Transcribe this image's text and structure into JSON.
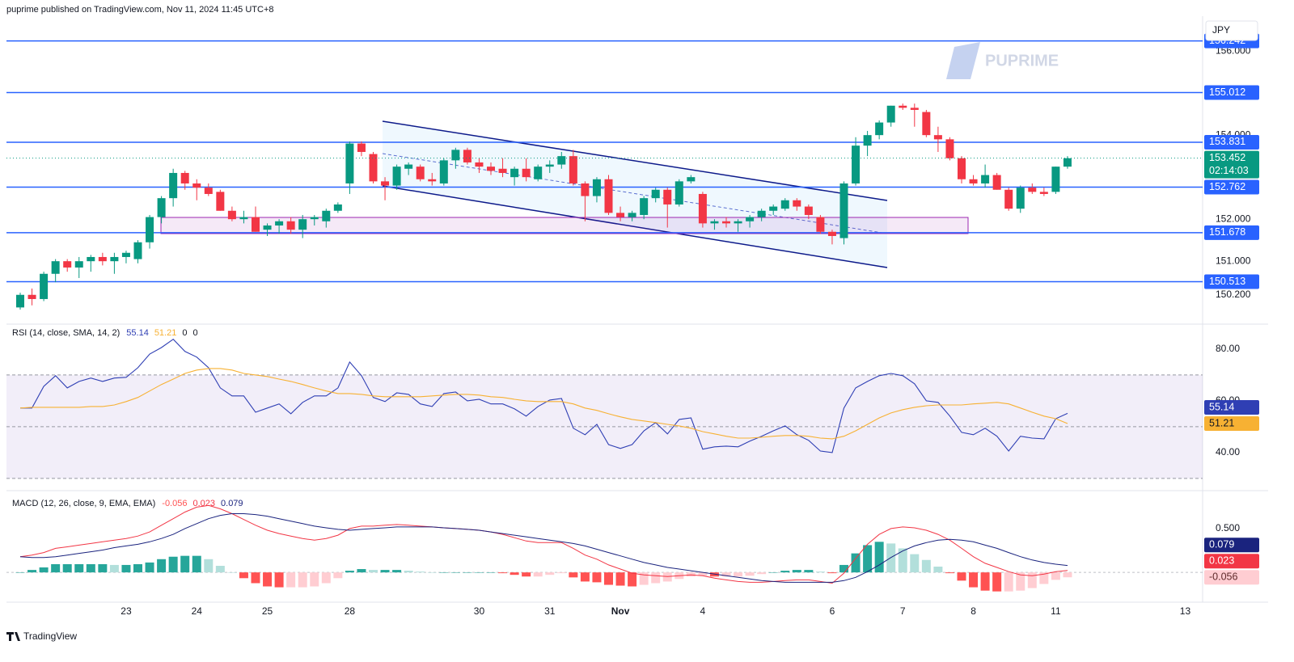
{
  "header": {
    "published": "puprime published on TradingView.com, Nov 11, 2024 11:45 UTC+8",
    "currency": "JPY",
    "watermark": "PUPRIME",
    "footer": "TradingView"
  },
  "chart_data": [
    {
      "type": "candlestick",
      "categories": [
        null,
        null,
        null,
        null,
        null,
        null,
        null,
        null,
        null,
        "23",
        null,
        null,
        null,
        null,
        null,
        "24",
        null,
        null,
        null,
        null,
        null,
        "25",
        null,
        null,
        null,
        null,
        null,
        null,
        "28",
        null,
        null,
        null,
        null,
        null,
        null,
        null,
        null,
        null,
        null,
        "30",
        null,
        null,
        null,
        null,
        null,
        "31",
        null,
        null,
        null,
        null,
        null,
        "Nov",
        null,
        null,
        null,
        null,
        null,
        null,
        "4",
        null,
        null,
        null,
        null,
        null,
        null,
        null,
        null,
        null,
        null,
        "6",
        null,
        null,
        null,
        null,
        null,
        "7",
        null,
        null,
        null,
        null,
        null,
        "8",
        null,
        null,
        null,
        null,
        null,
        null,
        "11",
        null,
        null,
        null,
        null,
        null,
        null,
        null,
        null,
        null,
        null,
        "13",
        null
      ],
      "open": [
        149.9,
        150.2,
        150.1,
        150.7,
        151.0,
        150.85,
        151.0,
        151.1,
        151.0,
        151.1,
        151.05,
        151.45,
        152.05,
        152.5,
        153.1,
        152.85,
        152.75,
        152.65,
        152.2,
        152.0,
        152.05,
        151.75,
        151.85,
        151.95,
        151.75,
        152.0,
        151.95,
        152.2,
        152.85,
        153.8,
        153.55,
        152.9,
        152.8,
        153.2,
        153.25,
        152.95,
        152.85,
        153.4,
        153.65,
        153.35,
        153.25,
        153.2,
        153.0,
        153.2,
        152.95,
        153.25,
        153.3,
        153.5,
        152.85,
        152.55,
        152.95,
        152.15,
        152.05,
        152.1,
        152.5,
        152.7,
        152.35,
        152.9,
        152.6,
        151.9,
        151.95,
        151.9,
        151.95,
        152.05,
        152.2,
        152.25,
        152.45,
        152.3,
        152.05,
        151.7,
        151.55,
        152.85,
        153.75,
        154.0,
        154.3,
        154.7,
        154.65,
        154.55,
        154.0,
        153.9,
        153.45,
        152.95,
        152.85,
        153.05,
        152.7,
        152.25,
        152.75,
        152.65,
        152.65,
        153.25,
        null,
        null,
        null,
        null,
        null,
        null,
        null,
        null,
        null,
        null,
        null
      ],
      "high": [
        150.25,
        150.35,
        150.75,
        151.05,
        151.05,
        151.1,
        151.15,
        151.2,
        151.2,
        151.25,
        151.5,
        152.1,
        152.55,
        153.2,
        153.15,
        152.95,
        152.85,
        152.7,
        152.3,
        152.2,
        152.3,
        151.9,
        152.0,
        152.05,
        152.1,
        152.1,
        152.25,
        152.4,
        153.85,
        153.85,
        153.6,
        153.0,
        153.3,
        153.35,
        153.3,
        153.1,
        153.45,
        153.7,
        153.7,
        153.45,
        153.35,
        153.45,
        153.25,
        153.45,
        153.3,
        153.4,
        153.6,
        153.65,
        152.9,
        153.0,
        153.05,
        152.3,
        152.2,
        152.55,
        152.75,
        152.75,
        152.95,
        153.05,
        152.65,
        152.0,
        152.05,
        152.0,
        152.1,
        152.25,
        152.35,
        152.5,
        152.5,
        152.35,
        152.1,
        151.75,
        152.9,
        153.95,
        154.1,
        154.35,
        154.7,
        154.75,
        154.75,
        154.6,
        154.2,
        153.95,
        153.5,
        153.05,
        153.3,
        153.1,
        152.75,
        152.8,
        152.85,
        152.75,
        153.25,
        153.5,
        null,
        null,
        null,
        null,
        null,
        null,
        null,
        null,
        null,
        null,
        null
      ],
      "low": [
        149.85,
        149.95,
        150.05,
        150.5,
        150.75,
        150.6,
        150.75,
        150.9,
        150.7,
        150.95,
        150.95,
        151.3,
        151.9,
        152.3,
        152.7,
        152.45,
        152.55,
        152.2,
        151.95,
        151.9,
        151.7,
        151.6,
        151.65,
        151.65,
        151.55,
        151.85,
        151.8,
        152.15,
        152.6,
        153.5,
        152.85,
        152.45,
        152.7,
        153.05,
        152.9,
        152.8,
        152.8,
        153.2,
        153.3,
        153.1,
        153.05,
        153.0,
        152.8,
        152.9,
        152.9,
        153.1,
        153.2,
        152.8,
        151.95,
        152.4,
        152.1,
        151.95,
        151.95,
        152.0,
        152.4,
        151.8,
        152.3,
        152.85,
        151.8,
        151.75,
        151.8,
        151.7,
        151.8,
        151.95,
        152.1,
        152.2,
        152.2,
        152.0,
        151.65,
        151.4,
        151.4,
        152.8,
        153.5,
        153.9,
        154.2,
        154.6,
        154.2,
        153.95,
        153.6,
        153.4,
        152.85,
        152.8,
        152.75,
        152.7,
        152.2,
        152.15,
        152.6,
        152.55,
        152.6,
        153.2,
        null,
        null,
        null,
        null,
        null,
        null,
        null,
        null,
        null,
        null,
        null
      ],
      "close": [
        150.2,
        150.1,
        150.7,
        151.0,
        150.85,
        151.0,
        151.1,
        151.0,
        151.1,
        151.2,
        151.45,
        152.05,
        152.5,
        153.1,
        152.85,
        152.75,
        152.6,
        152.2,
        152.0,
        152.05,
        151.7,
        151.85,
        151.95,
        151.75,
        152.0,
        152.05,
        152.2,
        152.35,
        153.8,
        153.6,
        152.9,
        152.8,
        153.25,
        153.3,
        152.95,
        152.9,
        153.4,
        153.65,
        153.35,
        153.25,
        153.15,
        153.1,
        153.2,
        153.0,
        153.25,
        153.3,
        153.5,
        152.85,
        152.55,
        152.95,
        152.15,
        152.05,
        152.15,
        152.5,
        152.7,
        152.35,
        152.9,
        153.0,
        151.9,
        151.95,
        151.9,
        151.95,
        152.05,
        152.2,
        152.3,
        152.45,
        152.3,
        152.1,
        151.7,
        151.6,
        152.85,
        153.75,
        154.0,
        154.3,
        154.7,
        154.65,
        154.6,
        154.0,
        153.9,
        153.45,
        152.95,
        152.85,
        153.05,
        152.7,
        152.25,
        152.75,
        152.65,
        152.6,
        153.25,
        153.45,
        null,
        null,
        null,
        null,
        null,
        null,
        null,
        null,
        null,
        null,
        null
      ],
      "up_color": "#089981",
      "down_color": "#f23645",
      "ylim": [
        149.58,
        156.83
      ],
      "yticks": [
        {
          "value": 156,
          "label": "156.000"
        },
        {
          "value": 154,
          "label": "154.000"
        },
        {
          "value": 152,
          "label": "152.000"
        },
        {
          "value": 151,
          "label": "151.000"
        },
        {
          "value": 150.2,
          "label": "150.200"
        }
      ],
      "levels": [
        156.242,
        155.012,
        153.831,
        152.762,
        151.678,
        150.513
      ],
      "level_color": "#2962ff",
      "last_price": 153.452,
      "countdown": "02:14:03",
      "grid": false
    },
    {
      "type": "line",
      "title": "RSI (14, close, SMA, 14, 2)",
      "series": [
        {
          "color": "#2f3fb4",
          "values": [
            57.2,
            57.2,
            65.6,
            69.7,
            65,
            67.5,
            68.8,
            67.5,
            68.8,
            69.1,
            72.8,
            78.1,
            80.6,
            83.8,
            79.1,
            76.9,
            72.8,
            65,
            61.9,
            61.9,
            55.6,
            57.2,
            58.8,
            55,
            59.4,
            61.9,
            61.9,
            65,
            75,
            69.7,
            61.3,
            59.7,
            63.1,
            62.5,
            58.8,
            57.8,
            62.8,
            63.4,
            60,
            60.6,
            58.8,
            58.8,
            56.9,
            54.1,
            57.8,
            60.3,
            60.9,
            49.4,
            46.9,
            50.9,
            43.1,
            41.6,
            43.1,
            48.4,
            51.6,
            47.2,
            52.8,
            53.4,
            41.3,
            42.2,
            42.5,
            42.2,
            44.4,
            46.3,
            48.4,
            50.3,
            46.9,
            44.7,
            40.6,
            40,
            57.2,
            65,
            67.5,
            69.7,
            70.6,
            69.7,
            66.6,
            60,
            59.4,
            54.1,
            47.8,
            46.9,
            49.4,
            46.3,
            40.6,
            46.3,
            45.6,
            45.3,
            53.1,
            55.14
          ]
        },
        {
          "color": "#f7b133",
          "values": [
            57.2,
            57.5,
            57.5,
            57.5,
            57.5,
            57.5,
            57.8,
            57.8,
            58.4,
            59.7,
            61.3,
            63.8,
            66.3,
            68.4,
            70.6,
            71.9,
            72.5,
            72.5,
            71.9,
            70.6,
            70,
            69.4,
            68.4,
            67.5,
            66.3,
            65,
            63.8,
            62.8,
            62.8,
            62.5,
            61.9,
            61.6,
            61.6,
            61.6,
            61.6,
            61.9,
            62.2,
            62.5,
            62.5,
            62.2,
            61.6,
            61.3,
            60.6,
            60,
            59.7,
            59.7,
            59.7,
            58.8,
            57.2,
            56.3,
            55,
            53.8,
            52.8,
            52.2,
            51.6,
            50.9,
            50.3,
            49.4,
            48.1,
            47.2,
            46.3,
            45.6,
            45.6,
            45.9,
            46.3,
            46.6,
            46.6,
            46.3,
            45.6,
            45.3,
            46.3,
            48.4,
            50.9,
            53.4,
            55.3,
            56.6,
            57.5,
            58.1,
            58.4,
            58.4,
            58.4,
            58.8,
            59.1,
            59.4,
            58.8,
            57.2,
            55.6,
            54.1,
            53.1,
            51.21
          ]
        }
      ],
      "extra_values": [
        0,
        0
      ],
      "ylim": [
        25.9,
        88.4
      ],
      "yticks": [
        {
          "value": 80,
          "label": "80.00"
        },
        {
          "value": 60,
          "label": "60.00"
        },
        {
          "value": 40,
          "label": "40.00"
        }
      ],
      "bands": [
        70,
        50,
        30
      ],
      "band_color": "#7e57c2"
    },
    {
      "type": "macd",
      "title": "MACD (12, 26, close, 9, EMA, EMA)",
      "histogram": {
        "colors": [
          "#26a69a",
          "#b2dfdb",
          "#ffcdd2",
          "#ff5252"
        ],
        "values": [
          0,
          0.028,
          0.057,
          0.094,
          0.094,
          0.094,
          0.094,
          0.094,
          0.085,
          0.085,
          0.094,
          0.113,
          0.151,
          0.179,
          0.189,
          0.189,
          0.151,
          0.075,
          0,
          -0.066,
          -0.123,
          -0.16,
          -0.17,
          -0.17,
          -0.17,
          -0.16,
          -0.123,
          -0.066,
          0.019,
          0.038,
          0.028,
          0.028,
          0.028,
          0.019,
          0.009,
          0,
          0,
          0,
          0,
          0,
          0,
          -0.009,
          -0.028,
          -0.047,
          -0.047,
          -0.028,
          -0.009,
          -0.057,
          -0.104,
          -0.113,
          -0.142,
          -0.151,
          -0.16,
          -0.142,
          -0.123,
          -0.104,
          -0.075,
          -0.047,
          -0.038,
          -0.047,
          -0.047,
          -0.047,
          -0.038,
          -0.019,
          0,
          0.019,
          0.028,
          0.028,
          0.009,
          -0.009,
          0.085,
          0.217,
          0.311,
          0.349,
          0.33,
          0.274,
          0.208,
          0.142,
          0.066,
          -0.009,
          -0.094,
          -0.17,
          -0.208,
          -0.217,
          -0.217,
          -0.208,
          -0.179,
          -0.132,
          -0.085,
          -0.056
        ]
      },
      "series": [
        {
          "color": "#f23645",
          "values": [
            0.179,
            0.198,
            0.226,
            0.274,
            0.292,
            0.311,
            0.33,
            0.349,
            0.368,
            0.387,
            0.415,
            0.462,
            0.538,
            0.613,
            0.689,
            0.745,
            0.764,
            0.726,
            0.67,
            0.604,
            0.538,
            0.481,
            0.443,
            0.415,
            0.387,
            0.368,
            0.387,
            0.425,
            0.5,
            0.528,
            0.528,
            0.538,
            0.547,
            0.538,
            0.528,
            0.519,
            0.509,
            0.5,
            0.491,
            0.481,
            0.462,
            0.434,
            0.396,
            0.358,
            0.34,
            0.34,
            0.34,
            0.274,
            0.198,
            0.151,
            0.085,
            0.038,
            -0.009,
            -0.028,
            -0.038,
            -0.047,
            -0.038,
            -0.028,
            -0.038,
            -0.066,
            -0.085,
            -0.104,
            -0.113,
            -0.113,
            -0.104,
            -0.094,
            -0.085,
            -0.085,
            -0.104,
            -0.123,
            -0.009,
            0.16,
            0.321,
            0.434,
            0.5,
            0.519,
            0.509,
            0.481,
            0.434,
            0.368,
            0.274,
            0.179,
            0.104,
            0.057,
            0.009,
            -0.028,
            -0.038,
            -0.019,
            0.009,
            0.023
          ]
        },
        {
          "color": "#1a237e",
          "values": [
            0.179,
            0.17,
            0.17,
            0.179,
            0.198,
            0.217,
            0.236,
            0.255,
            0.283,
            0.302,
            0.321,
            0.349,
            0.387,
            0.434,
            0.5,
            0.557,
            0.613,
            0.651,
            0.67,
            0.67,
            0.66,
            0.642,
            0.613,
            0.585,
            0.557,
            0.528,
            0.509,
            0.491,
            0.481,
            0.491,
            0.5,
            0.509,
            0.519,
            0.519,
            0.519,
            0.519,
            0.509,
            0.5,
            0.491,
            0.481,
            0.462,
            0.443,
            0.425,
            0.406,
            0.387,
            0.368,
            0.349,
            0.33,
            0.302,
            0.264,
            0.226,
            0.189,
            0.151,
            0.113,
            0.085,
            0.057,
            0.038,
            0.019,
            0,
            -0.019,
            -0.038,
            -0.057,
            -0.075,
            -0.094,
            -0.104,
            -0.113,
            -0.113,
            -0.113,
            -0.113,
            -0.113,
            -0.094,
            -0.057,
            0.009,
            0.085,
            0.17,
            0.245,
            0.302,
            0.34,
            0.368,
            0.377,
            0.368,
            0.349,
            0.311,
            0.274,
            0.226,
            0.179,
            0.142,
            0.113,
            0.094,
            0.079
          ]
        }
      ],
      "ylim": [
        -0.34,
        0.887
      ],
      "yticks": [
        {
          "value": 0.5,
          "label": "0.500"
        }
      ]
    }
  ]
}
